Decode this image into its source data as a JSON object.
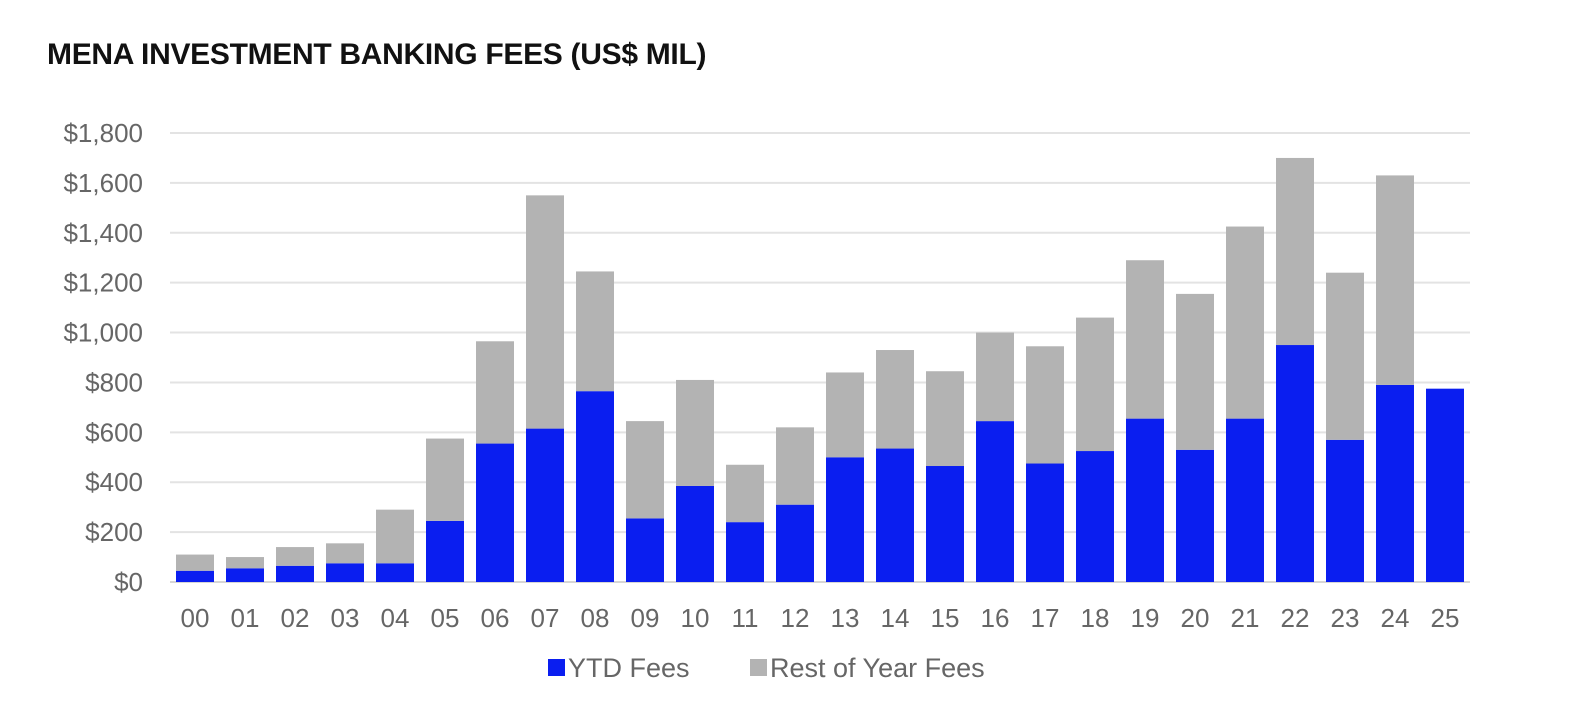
{
  "chart_data": {
    "type": "bar",
    "stacked": true,
    "title": "MENA INVESTMENT BANKING FEES (US$ MIL)",
    "xlabel": "",
    "ylabel": "",
    "categories": [
      "00",
      "01",
      "02",
      "03",
      "04",
      "05",
      "06",
      "07",
      "08",
      "09",
      "10",
      "11",
      "12",
      "13",
      "14",
      "15",
      "16",
      "17",
      "18",
      "19",
      "20",
      "21",
      "22",
      "23",
      "24",
      "25"
    ],
    "series": [
      {
        "name": "YTD Fees",
        "color": "#0a1ef0",
        "values": [
          45,
          55,
          65,
          75,
          75,
          245,
          555,
          615,
          765,
          255,
          385,
          240,
          310,
          500,
          535,
          465,
          645,
          475,
          525,
          655,
          530,
          655,
          950,
          570,
          790,
          775
        ]
      },
      {
        "name": "Rest of Year Fees",
        "color": "#b3b3b3",
        "values": [
          65,
          45,
          75,
          80,
          215,
          330,
          410,
          935,
          480,
          390,
          425,
          230,
          310,
          340,
          395,
          380,
          355,
          470,
          535,
          635,
          625,
          770,
          750,
          670,
          840,
          0
        ]
      }
    ],
    "y_ticks": [
      "$0",
      "$200",
      "$400",
      "$600",
      "$800",
      "$1,000",
      "$1,200",
      "$1,400",
      "$1,600",
      "$1,800"
    ],
    "ylim": [
      0,
      1800
    ],
    "grid": true,
    "legend": "bottom-center"
  }
}
